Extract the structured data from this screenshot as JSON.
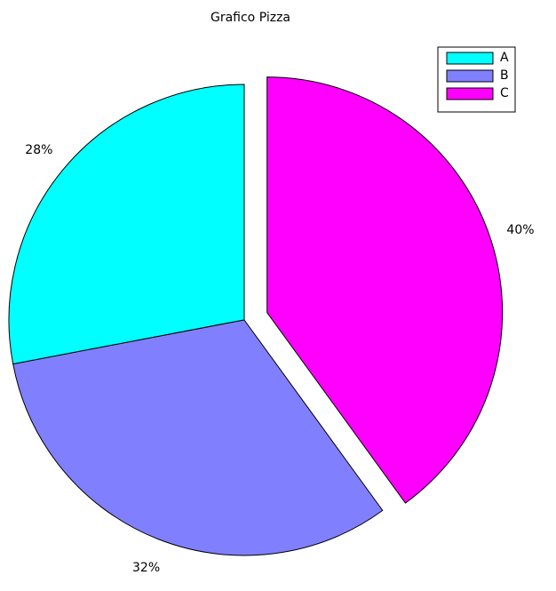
{
  "chart_data": {
    "type": "pie",
    "title": "Grafico Pizza",
    "categories": [
      "A",
      "B",
      "C"
    ],
    "values": [
      28,
      32,
      40
    ],
    "value_labels": [
      "28%",
      "32%",
      "40%"
    ],
    "colors": [
      "#00ffff",
      "#8080ff",
      "#ff00ff"
    ],
    "explode": [
      false,
      false,
      true
    ],
    "legend": "northeast"
  }
}
